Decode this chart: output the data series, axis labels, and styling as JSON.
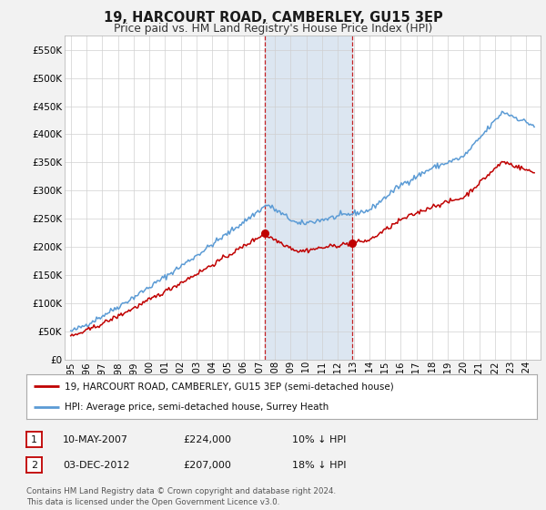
{
  "title": "19, HARCOURT ROAD, CAMBERLEY, GU15 3EP",
  "subtitle": "Price paid vs. HM Land Registry's House Price Index (HPI)",
  "legend_line1": "19, HARCOURT ROAD, CAMBERLEY, GU15 3EP (semi-detached house)",
  "legend_line2": "HPI: Average price, semi-detached house, Surrey Heath",
  "annotation1_num": "1",
  "annotation1_date": "10-MAY-2007",
  "annotation1_price": "£224,000",
  "annotation1_hpi": "10% ↓ HPI",
  "annotation2_num": "2",
  "annotation2_date": "03-DEC-2012",
  "annotation2_price": "£207,000",
  "annotation2_hpi": "18% ↓ HPI",
  "copyright": "Contains HM Land Registry data © Crown copyright and database right 2024.\nThis data is licensed under the Open Government Licence v3.0.",
  "ylim": [
    0,
    575000
  ],
  "yticks": [
    0,
    50000,
    100000,
    150000,
    200000,
    250000,
    300000,
    350000,
    400000,
    450000,
    500000,
    550000
  ],
  "ytick_labels": [
    "£0",
    "£50K",
    "£100K",
    "£150K",
    "£200K",
    "£250K",
    "£300K",
    "£350K",
    "£400K",
    "£450K",
    "£500K",
    "£550K"
  ],
  "sale1_year": 2007.36,
  "sale1_price": 224000,
  "sale2_year": 2012.92,
  "sale2_price": 207000,
  "hpi_color": "#5b9bd5",
  "price_color": "#c00000",
  "shade_color": "#dce6f1",
  "marker_color": "#c00000",
  "grid_color": "#d0d0d0",
  "background_color": "#ffffff",
  "fig_bg": "#f2f2f2",
  "xlim_left": 1994.6,
  "xlim_right": 2024.9
}
